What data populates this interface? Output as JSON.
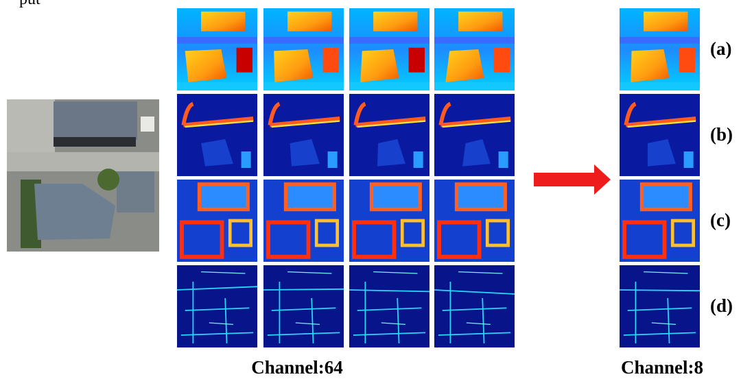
{
  "input_label": "put",
  "left_caption": "Channel:64",
  "right_caption": "Channel:8",
  "row_labels": [
    "(a)",
    "(b)",
    "(c)",
    "(d)"
  ]
}
